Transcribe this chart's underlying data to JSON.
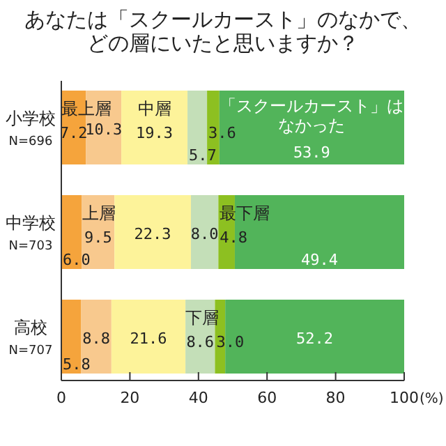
{
  "chart_data": {
    "type": "bar",
    "orientation": "horizontal",
    "stacked": true,
    "title": "あなたは「スクールカースト」のなかで、どの層にいたと思いますか？",
    "categories": [
      "小学校\nN=696",
      "中学校\nN=703",
      "高校\nN=707"
    ],
    "series": [
      {
        "color": "#f5a43c",
        "values": [
          7.2,
          6.0,
          5.8
        ],
        "value_labels": [
          "7.2",
          "6.0",
          "5.8"
        ]
      },
      {
        "color": "#f8c98e",
        "values": [
          10.3,
          9.5,
          8.8
        ],
        "value_labels": [
          "10.3",
          "9.5",
          "8.8"
        ]
      },
      {
        "color": "#fdf39a",
        "values": [
          19.3,
          22.3,
          21.6
        ],
        "value_labels": [
          "19.3",
          "22.3",
          "21.6"
        ]
      },
      {
        "color": "#c4dfb8",
        "values": [
          5.7,
          8.0,
          8.6
        ],
        "value_labels": [
          "5.7",
          "8.0",
          "8.6"
        ]
      },
      {
        "color": "#8dc021",
        "values": [
          3.6,
          4.8,
          3.0
        ],
        "value_labels": [
          "3.6",
          "4.8",
          "3.0"
        ]
      },
      {
        "color": "#52b45a",
        "values": [
          53.9,
          49.4,
          52.2
        ],
        "value_labels": [
          "53.9",
          "49.4",
          "52.2"
        ]
      }
    ],
    "annotations": [
      {
        "text": "最上層",
        "x": 7.2,
        "y": "小学校\nN=696"
      },
      {
        "text": "中層",
        "x": 36.8,
        "y": "小学校\nN=696"
      },
      {
        "text": "「スクールカースト」はなかった",
        "x": 100.0,
        "y": "小学校\nN=696"
      },
      {
        "text": "上層",
        "x": 15.5,
        "y": "中学校\nN=703"
      },
      {
        "text": "最下層",
        "x": 50.6,
        "y": "中学校\nN=703"
      },
      {
        "text": "下層",
        "x": 44.8,
        "y": "高校\nN=707"
      }
    ],
    "xlim": [
      0,
      100
    ],
    "xticks": [
      0,
      20,
      40,
      60,
      80,
      100
    ],
    "xlabel": "(%)"
  }
}
